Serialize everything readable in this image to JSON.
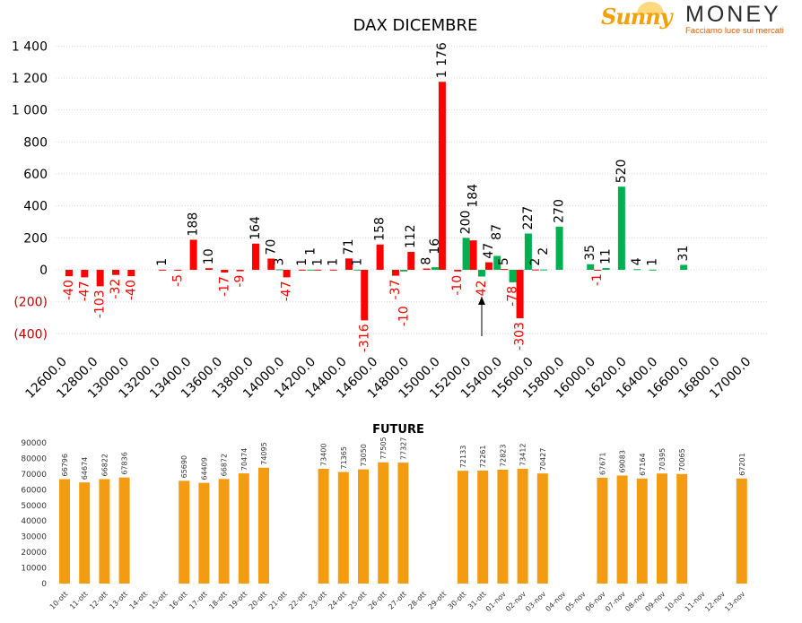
{
  "logo": {
    "brand": "Sunny MONEY",
    "name_a": "Sunny",
    "name_b": "MONEY",
    "tagline": "Facciamo luce sui mercati"
  },
  "chart_data": [
    {
      "type": "bar",
      "title": "DAX DICEMBRE",
      "ylim": [
        -400,
        1400
      ],
      "yticks": [
        {
          "v": 1400,
          "label": "1 400"
        },
        {
          "v": 1200,
          "label": "1 200"
        },
        {
          "v": 1000,
          "label": "1 000"
        },
        {
          "v": 800,
          "label": "800"
        },
        {
          "v": 600,
          "label": "600"
        },
        {
          "v": 400,
          "label": "400"
        },
        {
          "v": 200,
          "label": "200"
        },
        {
          "v": 0,
          "label": "0"
        },
        {
          "v": -200,
          "label": "(200)"
        },
        {
          "v": -400,
          "label": "(400)"
        }
      ],
      "xticks": [
        "12600.0",
        "12800.0",
        "13000.0",
        "13200.0",
        "13400.0",
        "13600.0",
        "13800.0",
        "14000.0",
        "14200.0",
        "14400.0",
        "14600.0",
        "14800.0",
        "15000.0",
        "15200.0",
        "15400.0",
        "15600.0",
        "15800.0",
        "16000.0",
        "16200.0",
        "16400.0",
        "16600.0",
        "16800.0",
        "17000.0"
      ],
      "xrange": [
        12600,
        17000
      ],
      "colors": {
        "red": "#ff0000",
        "green": "#00b050"
      },
      "series": [
        {
          "name": "red",
          "color": "#ff0000",
          "points": [
            [
              12600,
              -40
            ],
            [
              12700,
              -47
            ],
            [
              12800,
              -103
            ],
            [
              12900,
              -32
            ],
            [
              13000,
              -40
            ],
            [
              13200,
              1
            ],
            [
              13300,
              -5
            ],
            [
              13400,
              188
            ],
            [
              13500,
              10
            ],
            [
              13600,
              -17
            ],
            [
              13700,
              -9
            ],
            [
              13800,
              164
            ],
            [
              13900,
              70
            ],
            [
              14000,
              -47
            ],
            [
              14100,
              1
            ],
            [
              14200,
              1
            ],
            [
              14300,
              1
            ],
            [
              14400,
              71
            ],
            [
              14500,
              -316
            ],
            [
              14600,
              158
            ],
            [
              14700,
              -37
            ],
            [
              14800,
              112
            ],
            [
              14900,
              8
            ],
            [
              15000,
              1176
            ],
            [
              15100,
              -10
            ],
            [
              15200,
              184
            ],
            [
              15300,
              47
            ],
            [
              15400,
              5
            ],
            [
              15500,
              -303
            ],
            [
              15600,
              2
            ],
            [
              16000,
              -1
            ]
          ]
        },
        {
          "name": "green",
          "color": "#00b050",
          "points": [
            [
              14000,
              3
            ],
            [
              14200,
              1
            ],
            [
              14500,
              1
            ],
            [
              14800,
              -10
            ],
            [
              15000,
              16
            ],
            [
              15200,
              200
            ],
            [
              15300,
              -42
            ],
            [
              15400,
              87
            ],
            [
              15500,
              -78
            ],
            [
              15600,
              227
            ],
            [
              15700,
              2
            ],
            [
              15800,
              270
            ],
            [
              16000,
              35
            ],
            [
              16100,
              11
            ],
            [
              16200,
              520
            ],
            [
              16300,
              4
            ],
            [
              16400,
              1
            ],
            [
              16600,
              31
            ]
          ]
        }
      ],
      "annotation": "arrow at 15300"
    },
    {
      "type": "bar",
      "title": "FUTURE",
      "ylim": [
        0,
        90000
      ],
      "yticks": [
        "0",
        "10000",
        "20000",
        "30000",
        "40000",
        "50000",
        "60000",
        "70000",
        "80000",
        "90000"
      ],
      "color": "#f39c12",
      "categories": [
        "10-ott",
        "11-ott",
        "12-ott",
        "13-ott",
        "14-ott",
        "15-ott",
        "16-ott",
        "17-ott",
        "18-ott",
        "19-ott",
        "20-ott",
        "21-ott",
        "22-ott",
        "23-ott",
        "24-ott",
        "25-ott",
        "26-ott",
        "27-ott",
        "28-ott",
        "29-ott",
        "30-ott",
        "31-ott",
        "01-nov",
        "02-nov",
        "03-nov",
        "04-nov",
        "05-nov",
        "06-nov",
        "07-nov",
        "08-nov",
        "09-nov",
        "10-nov",
        "11-nov",
        "12-nov",
        "13-nov"
      ],
      "values": [
        66796,
        64674,
        66822,
        67836,
        null,
        null,
        65690,
        64409,
        66872,
        70474,
        74095,
        null,
        null,
        73400,
        71365,
        73050,
        77505,
        77327,
        null,
        null,
        72133,
        72261,
        72823,
        73412,
        70427,
        null,
        null,
        67671,
        69083,
        67164,
        70395,
        70065,
        null,
        null,
        67201
      ]
    }
  ]
}
